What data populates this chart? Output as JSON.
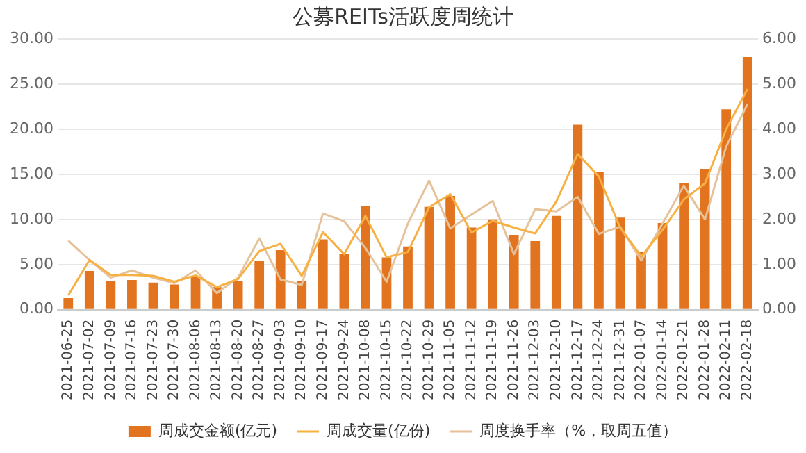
{
  "chart_data": {
    "type": "bar",
    "title": "公募REITs活跃度周统计",
    "categories": [
      "2021-06-25",
      "2021-07-02",
      "2021-07-09",
      "2021-07-16",
      "2021-07-23",
      "2021-07-30",
      "2021-08-06",
      "2021-08-13",
      "2021-08-20",
      "2021-08-27",
      "2021-09-03",
      "2021-09-10",
      "2021-09-17",
      "2021-09-24",
      "2021-10-08",
      "2021-10-15",
      "2021-10-22",
      "2021-10-29",
      "2021-11-05",
      "2021-11-12",
      "2021-11-19",
      "2021-11-26",
      "2021-12-03",
      "2021-12-10",
      "2021-12-17",
      "2021-12-24",
      "2021-12-31",
      "2022-01-07",
      "2022-01-14",
      "2022-01-21",
      "2022-01-28",
      "2022-02-11",
      "2022-02-18"
    ],
    "series": [
      {
        "name": "周成交金额(亿元)",
        "color": "#e2731f",
        "values": [
          1.3,
          4.3,
          3.2,
          3.3,
          3.0,
          2.8,
          3.6,
          2.5,
          3.2,
          5.4,
          6.6,
          3.2,
          7.8,
          6.2,
          11.5,
          5.8,
          7.0,
          11.4,
          12.6,
          9.1,
          10.0,
          8.3,
          7.6,
          10.4,
          20.5,
          15.3,
          10.2,
          6.4,
          9.6,
          14.0,
          15.6,
          22.2,
          28.0
        ]
      },
      {
        "name": "周成交量(亿份)",
        "type": "line",
        "axis": "y2",
        "color": "#f7b042",
        "values": [
          0.32,
          1.1,
          0.77,
          0.77,
          0.75,
          0.62,
          0.76,
          0.5,
          0.68,
          1.3,
          1.46,
          0.75,
          1.72,
          1.23,
          2.08,
          1.16,
          1.28,
          2.27,
          2.56,
          1.71,
          1.97,
          1.82,
          1.69,
          2.4,
          3.45,
          2.95,
          1.82,
          1.18,
          1.77,
          2.44,
          2.8,
          4.0,
          4.89
        ]
      },
      {
        "name": "周度换手率（%，取周五值）",
        "type": "line",
        "axis": "y2",
        "color": "#e6c29b",
        "values": [
          1.53,
          1.1,
          0.71,
          0.87,
          0.71,
          0.59,
          0.87,
          0.37,
          0.71,
          1.58,
          0.67,
          0.55,
          2.13,
          1.96,
          1.37,
          0.62,
          1.91,
          2.86,
          1.8,
          2.11,
          2.41,
          1.23,
          2.23,
          2.18,
          2.5,
          1.68,
          1.84,
          1.09,
          1.91,
          2.75,
          2.0,
          3.62,
          4.55
        ]
      }
    ],
    "ylim": [
      0,
      30
    ],
    "yticks": [
      {
        "value": 0,
        "label": "0.00"
      },
      {
        "value": 5,
        "label": "5.00"
      },
      {
        "value": 10,
        "label": "10.00"
      },
      {
        "value": 15,
        "label": "15.00"
      },
      {
        "value": 20,
        "label": "20.00"
      },
      {
        "value": 25,
        "label": "25.00"
      },
      {
        "value": 30,
        "label": "30.00"
      }
    ],
    "y2lim": [
      0,
      6
    ],
    "y2ticks": [
      {
        "value": 0,
        "label": "0.00"
      },
      {
        "value": 1,
        "label": "1.00"
      },
      {
        "value": 2,
        "label": "2.00"
      },
      {
        "value": 3,
        "label": "3.00"
      },
      {
        "value": 4,
        "label": "4.00"
      },
      {
        "value": 5,
        "label": "5.00"
      },
      {
        "value": 6,
        "label": "6.00"
      }
    ],
    "grid": "y",
    "legend": "bottom",
    "marker": "none",
    "line_style": "solid"
  }
}
